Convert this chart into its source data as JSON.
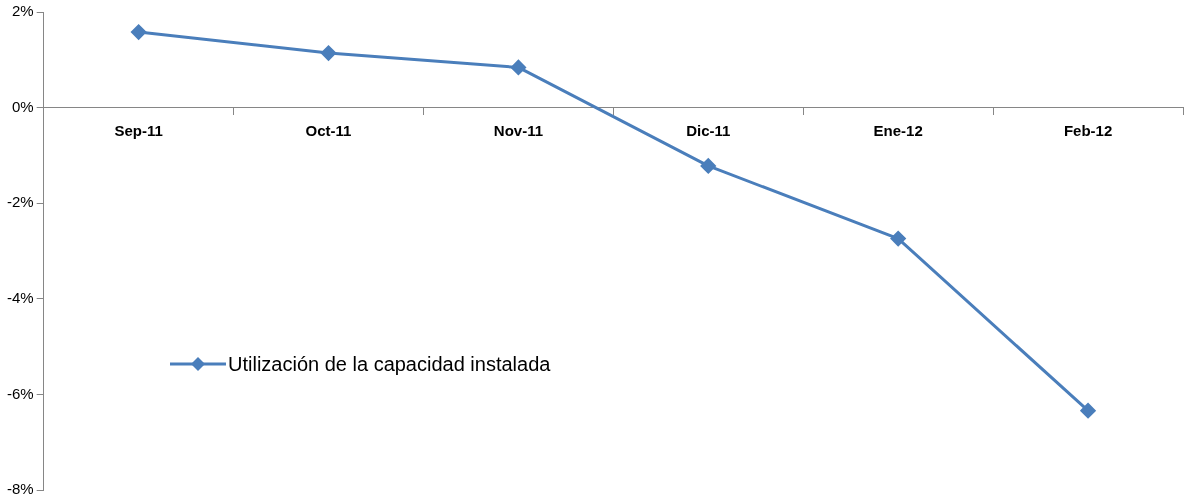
{
  "chart_data": {
    "type": "line",
    "categories": [
      "Sep-11",
      "Oct-11",
      "Nov-11",
      "Dic-11",
      "Ene-12",
      "Feb-12"
    ],
    "series": [
      {
        "name": "Utilización de la capacidad instalada",
        "color": "#4a7ebb",
        "values": [
          1.58,
          1.14,
          0.84,
          -1.22,
          -2.74,
          -6.34
        ]
      }
    ],
    "ylim": [
      -8,
      2
    ],
    "yticks": [
      {
        "value": -8,
        "label": "-8%"
      },
      {
        "value": -6,
        "label": "-6%"
      },
      {
        "value": -4,
        "label": "-4%"
      },
      {
        "value": -2,
        "label": "-2%"
      },
      {
        "value": 0,
        "label": "0%"
      },
      {
        "value": 2,
        "label": "2%"
      }
    ],
    "grid": false,
    "legend": "left",
    "marker": "diamond",
    "line_style": "solid"
  }
}
